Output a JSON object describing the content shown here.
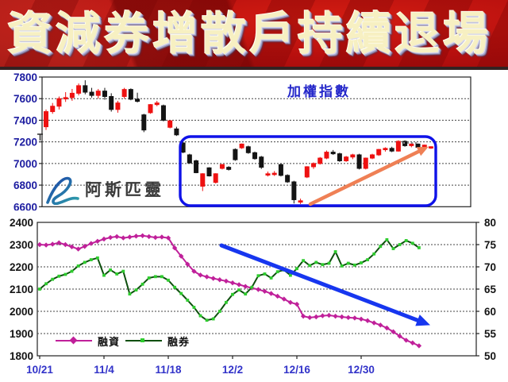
{
  "banner": {
    "title": "資減券增散戶持續退場",
    "bg_color": "#b60f0e",
    "text_color": "#f7f0c2"
  },
  "watermark": {
    "brand": "阿斯匹靈",
    "logo_color_start": "#1b3fa8",
    "logo_color_end": "#2fa3ab"
  },
  "chart_data": [
    {
      "id": "weighted-index",
      "type": "candlestick",
      "title": "加權指數",
      "ylim": [
        6600,
        7800
      ],
      "y_ticks": [
        7800,
        7600,
        7400,
        7200,
        7000,
        6800,
        6600
      ],
      "up_color": "#ee1111",
      "down_color": "#141414",
      "candles_ohlc": [
        [
          7340,
          7500,
          7310,
          7480
        ],
        [
          7480,
          7560,
          7460,
          7530
        ],
        [
          7530,
          7620,
          7500,
          7600
        ],
        [
          7600,
          7660,
          7570,
          7610
        ],
        [
          7610,
          7690,
          7580,
          7650
        ],
        [
          7650,
          7740,
          7630,
          7720
        ],
        [
          7720,
          7770,
          7640,
          7660
        ],
        [
          7660,
          7700,
          7610,
          7630
        ],
        [
          7630,
          7690,
          7600,
          7670
        ],
        [
          7670,
          7700,
          7590,
          7620
        ],
        [
          7620,
          7650,
          7480,
          7500
        ],
        [
          7500,
          7580,
          7470,
          7560
        ],
        [
          7620,
          7700,
          7600,
          7685
        ],
        [
          7685,
          7695,
          7585,
          7595
        ],
        [
          7595,
          7655,
          7565,
          7575
        ],
        [
          7450,
          7460,
          7290,
          7310
        ],
        [
          7470,
          7550,
          7460,
          7545
        ],
        [
          7545,
          7580,
          7530,
          7560
        ],
        [
          7535,
          7545,
          7390,
          7400
        ],
        [
          7335,
          7400,
          7325,
          7395
        ],
        [
          7320,
          7340,
          7255,
          7265
        ],
        [
          7190,
          7200,
          7095,
          7105
        ],
        [
          7080,
          7090,
          7000,
          7005
        ],
        [
          7025,
          7035,
          6910,
          6915
        ],
        [
          6790,
          6910,
          6745,
          6905
        ],
        [
          6960,
          6965,
          6880,
          6885
        ],
        [
          6825,
          6910,
          6815,
          6905
        ],
        [
          6955,
          6995,
          6945,
          6990
        ],
        [
          6965,
          6975,
          6935,
          6945
        ],
        [
          7130,
          7140,
          7025,
          7035
        ],
        [
          7145,
          7185,
          7135,
          7180
        ],
        [
          7155,
          7165,
          7090,
          7100
        ],
        [
          7100,
          7110,
          7035,
          7045
        ],
        [
          7060,
          7070,
          6950,
          6965
        ],
        [
          6905,
          6925,
          6880,
          6905
        ],
        [
          6905,
          6930,
          6885,
          6910
        ],
        [
          6990,
          7000,
          6880,
          6890
        ],
        [
          6890,
          6900,
          6820,
          6830
        ],
        [
          6830,
          6840,
          6630,
          6665
        ],
        [
          6645,
          6675,
          6625,
          6655
        ],
        [
          6875,
          6975,
          6865,
          6970
        ],
        [
          6970,
          7010,
          6950,
          7000
        ],
        [
          7000,
          7060,
          6990,
          7050
        ],
        [
          7050,
          7120,
          7040,
          7105
        ],
        [
          7105,
          7125,
          7080,
          7090
        ],
        [
          7090,
          7100,
          7015,
          7025
        ],
        [
          7025,
          7070,
          7015,
          7060
        ],
        [
          7060,
          7090,
          7040,
          7080
        ],
        [
          7080,
          7090,
          6945,
          6955
        ],
        [
          6955,
          7055,
          6945,
          7050
        ],
        [
          7050,
          7090,
          7040,
          7080
        ],
        [
          7080,
          7135,
          7070,
          7130
        ],
        [
          7130,
          7150,
          7110,
          7140
        ],
        [
          7140,
          7155,
          7105,
          7115
        ],
        [
          7115,
          7215,
          7110,
          7205
        ],
        [
          7205,
          7215,
          7155,
          7165
        ],
        [
          7165,
          7190,
          7150,
          7180
        ],
        [
          7180,
          7185,
          7140,
          7150
        ],
        [
          7150,
          7175,
          7145,
          7170
        ],
        [
          7145,
          7160,
          7135,
          7155
        ]
      ],
      "annotations": {
        "highlight_box": {
          "color": "#0f12e8"
        },
        "trend_arrow": {
          "direction": "up",
          "color": "#ef8055"
        }
      }
    },
    {
      "id": "margin-balances",
      "type": "line",
      "left_axis": {
        "lim": [
          1800,
          2400
        ],
        "ticks": [
          2400,
          2300,
          2200,
          2100,
          2000,
          1900,
          1800
        ]
      },
      "right_axis": {
        "lim": [
          50,
          80
        ],
        "ticks": [
          80,
          75,
          70,
          65,
          60,
          55,
          50
        ]
      },
      "x_labels": [
        {
          "label": "10/21",
          "day": 0
        },
        {
          "label": "11/4",
          "day": 10
        },
        {
          "label": "11/18",
          "day": 20
        },
        {
          "label": "12/2",
          "day": 30
        },
        {
          "label": "12/16",
          "day": 40
        },
        {
          "label": "12/30",
          "day": 50
        }
      ],
      "series": [
        {
          "name": "融資",
          "axis": "left",
          "color": "#c0209a",
          "marker": "diamond",
          "marker_color": "#c0209a",
          "values": [
            2300,
            2298,
            2302,
            2308,
            2300,
            2290,
            2280,
            2292,
            2305,
            2315,
            2325,
            2332,
            2336,
            2330,
            2334,
            2338,
            2340,
            2336,
            2332,
            2334,
            2330,
            2285,
            2248,
            2212,
            2180,
            2163,
            2155,
            2148,
            2142,
            2136,
            2128,
            2120,
            2112,
            2105,
            2098,
            2090,
            2080,
            2068,
            2055,
            2040,
            2032,
            1978,
            1972,
            1975,
            1980,
            1982,
            1978,
            1975,
            1972,
            1970,
            1965,
            1958,
            1948,
            1938,
            1925,
            1908,
            1888,
            1870,
            1858,
            1845
          ]
        },
        {
          "name": "融券",
          "axis": "right",
          "color": "#0d4f0d",
          "marker": "square",
          "marker_color": "#2ecc2e",
          "values": [
            65.0,
            66.2,
            67.2,
            67.9,
            68.3,
            69.0,
            70.2,
            71.0,
            71.6,
            72.0,
            68.1,
            69.3,
            68.4,
            69.0,
            63.9,
            64.8,
            66.1,
            67.5,
            67.8,
            67.8,
            67.0,
            65.4,
            64.0,
            62.5,
            60.9,
            59.0,
            58.0,
            58.3,
            60.0,
            62.0,
            63.8,
            64.8,
            63.9,
            65.4,
            68.0,
            68.4,
            67.5,
            68.9,
            69.3,
            68.1,
            69.6,
            71.4,
            70.3,
            71.0,
            70.5,
            70.8,
            73.4,
            70.2,
            70.8,
            70.4,
            70.9,
            71.6,
            72.9,
            74.6,
            76.1,
            74.1,
            75.0,
            75.9,
            75.3,
            74.3
          ]
        }
      ],
      "annotations": {
        "trend_arrow": {
          "direction": "down",
          "color": "#1736ef"
        }
      }
    }
  ]
}
